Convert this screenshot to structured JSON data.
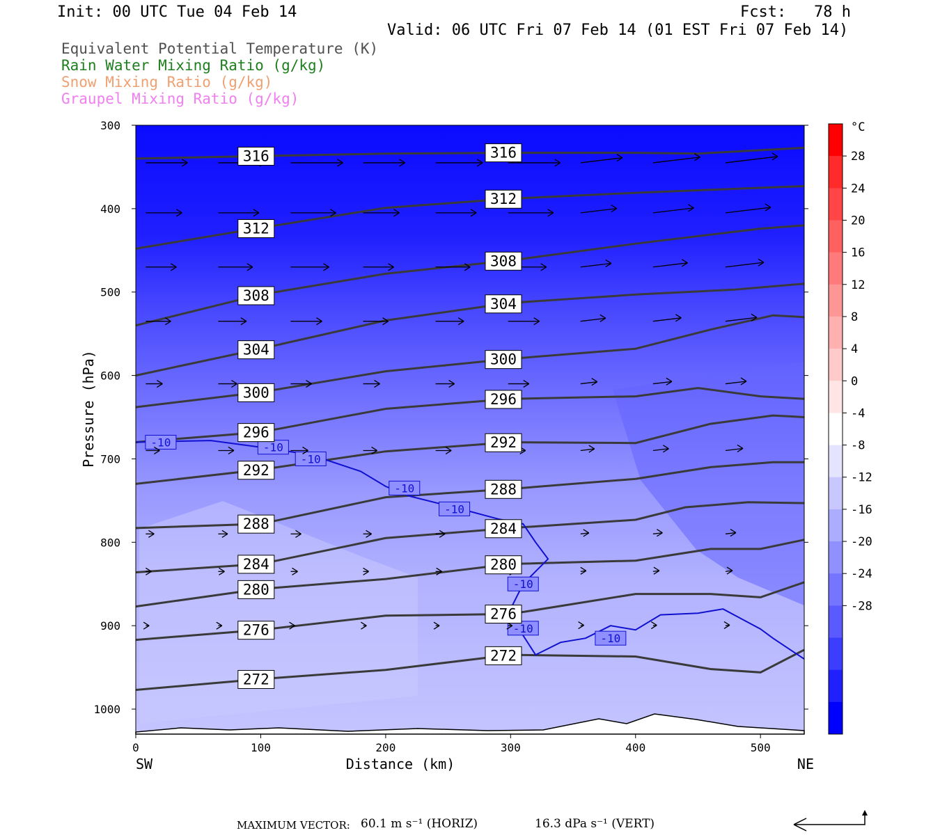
{
  "header": {
    "init": "Init: 00 UTC Tue 04 Feb 14",
    "fcst": "Fcst:   78 h",
    "valid": "Valid: 06 UTC Fri 07 Feb 14 (01 EST Fri 07 Feb 14)"
  },
  "fields": [
    {
      "label": "Equivalent Potential Temperature (K)",
      "color": "#505050"
    },
    {
      "label": "Rain Water Mixing Ratio (g/kg)",
      "color": "#1e7f1e"
    },
    {
      "label": "Snow Mixing Ratio (g/kg)",
      "color": "#f0a070"
    },
    {
      "label": "Graupel Mixing Ratio (g/kg)",
      "color": "#f080f0"
    }
  ],
  "chart_data": {
    "type": "cross-section",
    "xlabel": "Distance (km)",
    "ylabel": "Pressure (hPa)",
    "xlim": [
      0,
      535
    ],
    "ylim": [
      1030,
      300
    ],
    "x_ticks": [
      0,
      100,
      200,
      300,
      400,
      500
    ],
    "y_ticks": [
      300,
      400,
      500,
      600,
      700,
      800,
      900,
      1000
    ],
    "left_end": "SW",
    "right_end": "NE",
    "colorbar": {
      "unit": "°C",
      "ticks": [
        "28",
        "24",
        "20",
        "16",
        "12",
        "8",
        "4",
        "0",
        "-4",
        "-8",
        "-12",
        "-16",
        "-20",
        "-24",
        "-28"
      ],
      "colors": [
        "#ff0000",
        "#ff2a2a",
        "#ff4545",
        "#ff6060",
        "#ff7b7b",
        "#ff9696",
        "#ffb0b0",
        "#ffcaca",
        "#ffe5e5",
        "#ffffff",
        "#e4e4ff",
        "#c8c8ff",
        "#adadff",
        "#9090ff",
        "#7575ff",
        "#5a5aff",
        "#3d3dff",
        "#2020ff",
        "#0000ff"
      ]
    },
    "theta_e_contours": [
      {
        "label": "316",
        "points": [
          [
            0,
            340
          ],
          [
            100,
            337
          ],
          [
            200,
            334
          ],
          [
            300,
            333
          ],
          [
            400,
            333
          ],
          [
            450,
            334
          ],
          [
            535,
            327
          ]
        ]
      },
      {
        "label": "312",
        "points": [
          [
            0,
            448
          ],
          [
            100,
            423
          ],
          [
            200,
            399
          ],
          [
            300,
            388
          ],
          [
            400,
            381
          ],
          [
            500,
            375
          ],
          [
            535,
            373
          ]
        ]
      },
      {
        "label": "308",
        "points": [
          [
            0,
            540
          ],
          [
            100,
            503
          ],
          [
            200,
            478
          ],
          [
            300,
            462
          ],
          [
            400,
            442
          ],
          [
            500,
            424
          ],
          [
            535,
            420
          ]
        ]
      },
      {
        "label": "304",
        "points": [
          [
            0,
            600
          ],
          [
            100,
            568
          ],
          [
            200,
            534
          ],
          [
            300,
            513
          ],
          [
            400,
            503
          ],
          [
            480,
            497
          ],
          [
            535,
            490
          ]
        ]
      },
      {
        "label": "300",
        "points": [
          [
            0,
            638
          ],
          [
            100,
            620
          ],
          [
            200,
            595
          ],
          [
            300,
            580
          ],
          [
            400,
            568
          ],
          [
            460,
            545
          ],
          [
            510,
            528
          ],
          [
            535,
            530
          ]
        ]
      },
      {
        "label": "296",
        "points": [
          [
            0,
            680
          ],
          [
            100,
            668
          ],
          [
            200,
            640
          ],
          [
            300,
            628
          ],
          [
            400,
            625
          ],
          [
            450,
            615
          ],
          [
            500,
            625
          ],
          [
            535,
            628
          ]
        ]
      },
      {
        "label": "292",
        "points": [
          [
            0,
            730
          ],
          [
            100,
            713
          ],
          [
            200,
            691
          ],
          [
            300,
            680
          ],
          [
            400,
            681
          ],
          [
            460,
            658
          ],
          [
            510,
            648
          ],
          [
            535,
            650
          ]
        ]
      },
      {
        "label": "288",
        "points": [
          [
            0,
            783
          ],
          [
            100,
            778
          ],
          [
            200,
            746
          ],
          [
            300,
            736
          ],
          [
            400,
            724
          ],
          [
            460,
            710
          ],
          [
            510,
            704
          ],
          [
            535,
            704
          ]
        ]
      },
      {
        "label": "284",
        "points": [
          [
            0,
            836
          ],
          [
            100,
            826
          ],
          [
            200,
            795
          ],
          [
            300,
            783
          ],
          [
            400,
            773
          ],
          [
            440,
            758
          ],
          [
            490,
            752
          ],
          [
            535,
            753
          ]
        ]
      },
      {
        "label": "280",
        "points": [
          [
            0,
            877
          ],
          [
            100,
            856
          ],
          [
            200,
            844
          ],
          [
            300,
            826
          ],
          [
            400,
            822
          ],
          [
            460,
            808
          ],
          [
            500,
            808
          ],
          [
            535,
            797
          ]
        ]
      },
      {
        "label": "276",
        "points": [
          [
            0,
            917
          ],
          [
            100,
            905
          ],
          [
            200,
            888
          ],
          [
            300,
            886
          ],
          [
            400,
            862
          ],
          [
            460,
            862
          ],
          [
            500,
            866
          ],
          [
            535,
            848
          ]
        ]
      },
      {
        "label": "272",
        "points": [
          [
            0,
            977
          ],
          [
            100,
            964
          ],
          [
            200,
            953
          ],
          [
            300,
            935
          ],
          [
            400,
            937
          ],
          [
            460,
            952
          ],
          [
            500,
            956
          ],
          [
            535,
            929
          ]
        ]
      }
    ],
    "isotherm_minus10_label": "-10",
    "max_vector_horiz": "60.1 m s⁻¹ (HORIZ)",
    "max_vector_vert": "16.3 dPa s⁻¹ (VERT)"
  },
  "footer": {
    "label": "MAXIMUM VECTOR:",
    "horiz": "60.1 m s⁻¹ (HORIZ)",
    "vert": "16.3 dPa s⁻¹ (VERT)"
  }
}
